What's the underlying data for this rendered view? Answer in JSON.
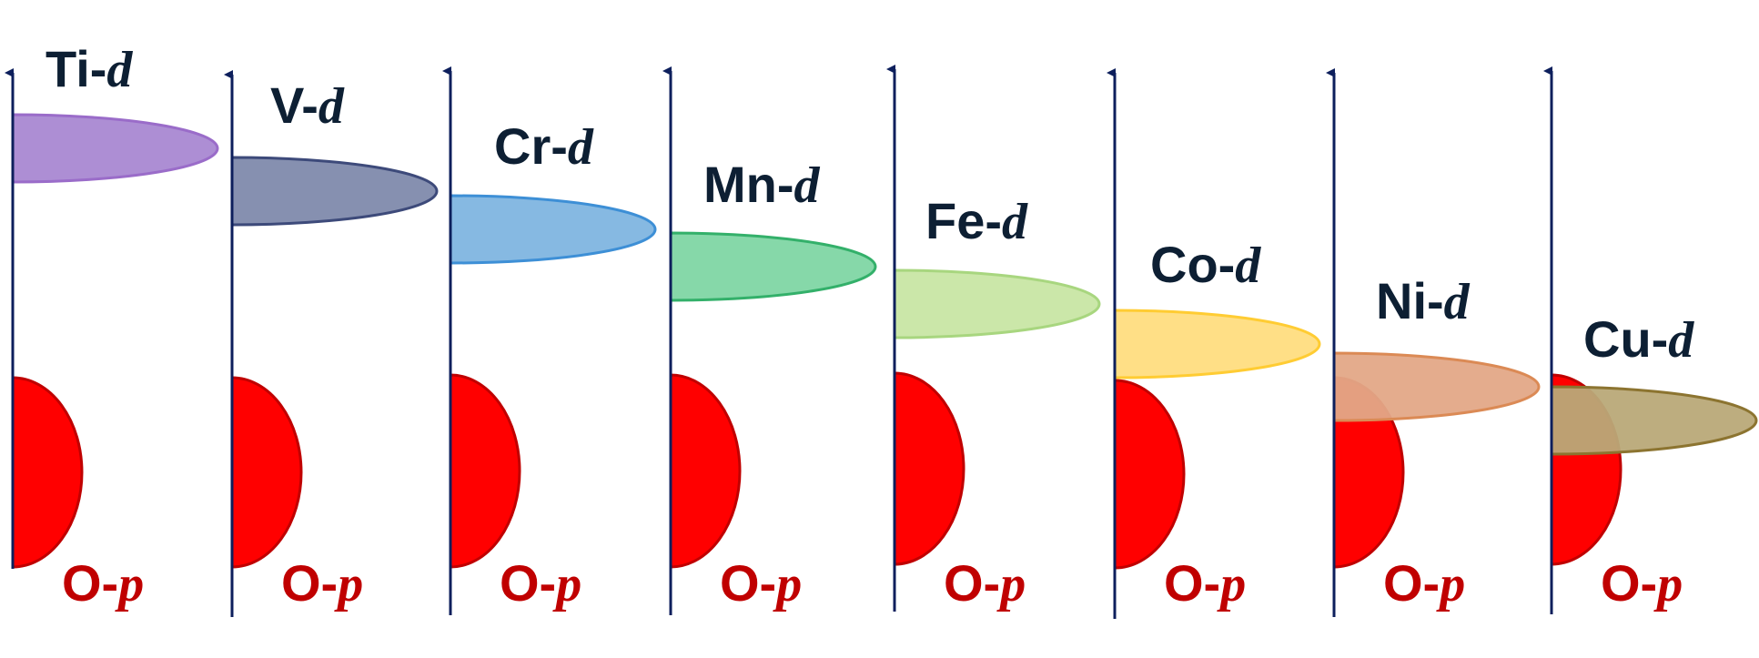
{
  "panels": [
    {
      "metal": "Ti",
      "d_color": "#a988d2",
      "d_edge": "#9a6cc9"
    },
    {
      "metal": "V",
      "d_color": "#7f8aac",
      "d_edge": "#3d4a7a"
    },
    {
      "metal": "Cr",
      "d_color": "#7fb5e0",
      "d_edge": "#3d8fd6"
    },
    {
      "metal": "Mn",
      "d_color": "#7fd6a4",
      "d_edge": "#33b06a"
    },
    {
      "metal": "Fe",
      "d_color": "#c8e6a4",
      "d_edge": "#a8d67f"
    },
    {
      "metal": "Co",
      "d_color": "#ffdd80",
      "d_edge": "#ffcc33"
    },
    {
      "metal": "Ni",
      "d_color": "#e3a887",
      "d_edge": "#db8a55"
    },
    {
      "metal": "Cu",
      "d_color": "#b9a978",
      "d_edge": "#8c7430"
    }
  ],
  "dash": "-",
  "d_orbital": "d",
  "o_element": "O",
  "p_orbital": "p",
  "colors": {
    "axis": "#0d1f5c",
    "o_p_fill": "#ff0000",
    "o_p_edge": "#c00000",
    "o_label": "#c00000",
    "d_label": "#0d1f33"
  }
}
